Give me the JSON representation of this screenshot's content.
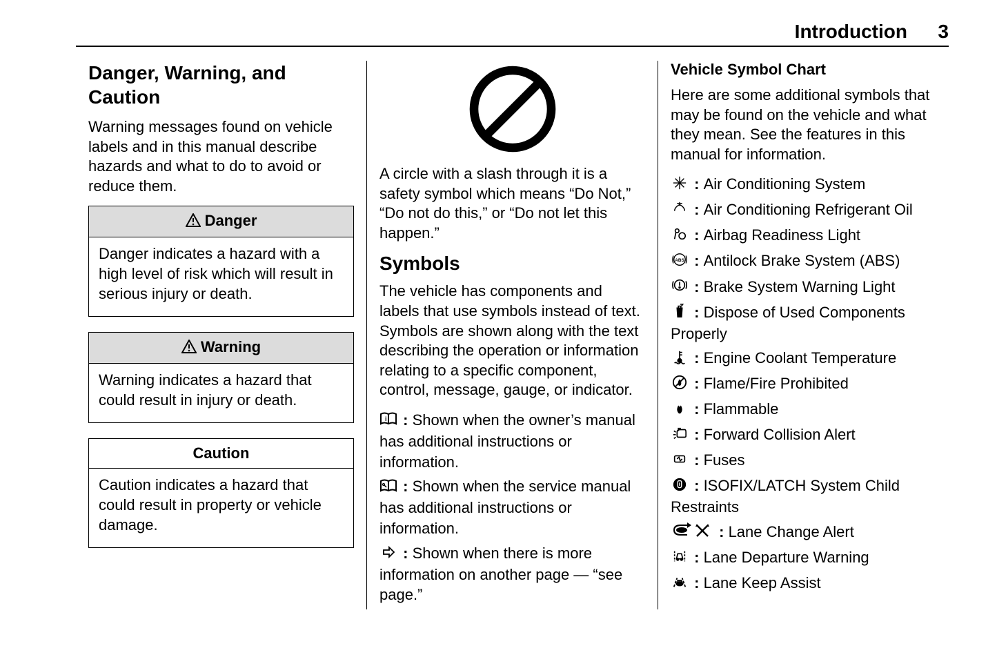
{
  "header": {
    "section": "Introduction",
    "page": "3"
  },
  "col1": {
    "title": "Danger, Warning, and Caution",
    "intro": "Warning messages found on vehicle labels and in this manual describe hazards and what to do to avoid or reduce them.",
    "danger": {
      "label": "Danger",
      "text": "Danger indicates a hazard with a high level of risk which will result in serious injury or death."
    },
    "warning": {
      "label": "Warning",
      "text": "Warning indicates a hazard that could result in injury or death."
    },
    "caution": {
      "label": "Caution",
      "text": "Caution indicates a hazard that could result in property or vehicle damage."
    }
  },
  "col2": {
    "prohibit_text": "A circle with a slash through it is a safety symbol which means “Do Not,” “Do not do this,” or “Do not let this happen.”",
    "symbols_title": "Symbols",
    "symbols_intro": "The vehicle has components and labels that use symbols instead of text. Symbols are shown along with the text describing the operation or information relating to a specific component, control, message, gauge, or indicator.",
    "owner_manual": "Shown when the owner’s manual has additional instructions or information.",
    "service_manual": "Shown when the service manual has additional instructions or information.",
    "see_page": "Shown when there is more information on another page — “see page.”"
  },
  "col3": {
    "title": "Vehicle Symbol Chart",
    "intro": "Here are some additional symbols that may be found on the vehicle and what they mean. See the features in this manual for information.",
    "items": [
      {
        "icon": "snowflake",
        "label": "Air Conditioning System"
      },
      {
        "icon": "ac-oil",
        "label": "Air Conditioning Refrigerant Oil"
      },
      {
        "icon": "airbag",
        "label": "Airbag Readiness Light"
      },
      {
        "icon": "abs",
        "label": "Antilock Brake System (ABS)"
      },
      {
        "icon": "brake",
        "label": "Brake System Warning Light"
      },
      {
        "icon": "dispose",
        "label": "Dispose of Used Components Properly"
      },
      {
        "icon": "coolant",
        "label": "Engine Coolant Temperature"
      },
      {
        "icon": "fire-prohibit",
        "label": "Flame/Fire Prohibited"
      },
      {
        "icon": "flame",
        "label": "Flammable"
      },
      {
        "icon": "fca",
        "label": "Forward Collision Alert"
      },
      {
        "icon": "fuse",
        "label": "Fuses"
      },
      {
        "icon": "isofix",
        "label": "ISOFIX/LATCH System Child Restraints"
      },
      {
        "icon": "lane-change",
        "label": "Lane Change Alert"
      },
      {
        "icon": "ldw",
        "label": "Lane Departure Warning"
      },
      {
        "icon": "lka",
        "label": "Lane Keep Assist"
      }
    ]
  },
  "style": {
    "page_bg": "#ffffff",
    "text_color": "#000000",
    "rule_color": "#000000",
    "box_shade": "#dcdcdc",
    "body_fontsize": 22,
    "h2_fontsize": 28
  }
}
